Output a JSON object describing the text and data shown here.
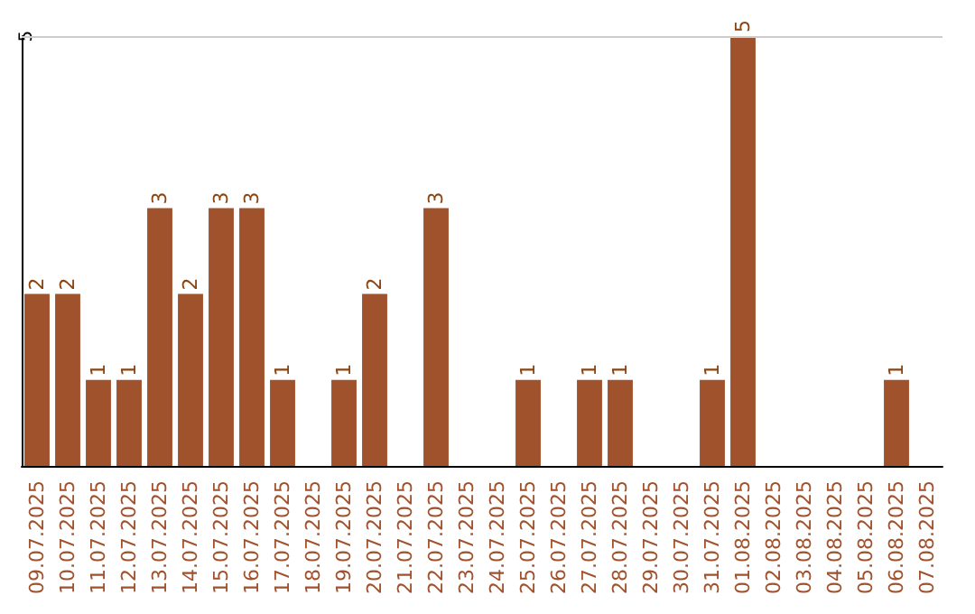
{
  "chart_data": {
    "type": "bar",
    "categories": [
      "09.07.2025",
      "10.07.2025",
      "11.07.2025",
      "12.07.2025",
      "13.07.2025",
      "14.07.2025",
      "15.07.2025",
      "16.07.2025",
      "17.07.2025",
      "18.07.2025",
      "19.07.2025",
      "20.07.2025",
      "21.07.2025",
      "22.07.2025",
      "23.07.2025",
      "24.07.2025",
      "25.07.2025",
      "26.07.2025",
      "27.07.2025",
      "28.07.2025",
      "29.07.2025",
      "30.07.2025",
      "31.07.2025",
      "01.08.2025",
      "02.08.2025",
      "03.08.2025",
      "04.08.2025",
      "05.08.2025",
      "06.08.2025",
      "07.08.2025"
    ],
    "values": [
      2,
      2,
      1,
      1,
      3,
      2,
      3,
      3,
      1,
      0,
      1,
      2,
      0,
      3,
      0,
      0,
      1,
      0,
      1,
      1,
      0,
      0,
      1,
      5,
      0,
      0,
      0,
      0,
      1,
      0
    ],
    "value_labels": [
      "2",
      "2",
      "1",
      "1",
      "3",
      "2",
      "3",
      "3",
      "1",
      null,
      "1",
      "2",
      null,
      "3",
      null,
      null,
      "1",
      null,
      "1",
      "1",
      null,
      null,
      "1",
      "5",
      null,
      null,
      null,
      null,
      "1",
      null
    ],
    "color": "#a0522d",
    "ylim": [
      0,
      5
    ],
    "yticks": [
      5
    ],
    "ref_lines": [
      {
        "axis": "y",
        "value": 5,
        "color": "#cccccc"
      }
    ]
  }
}
